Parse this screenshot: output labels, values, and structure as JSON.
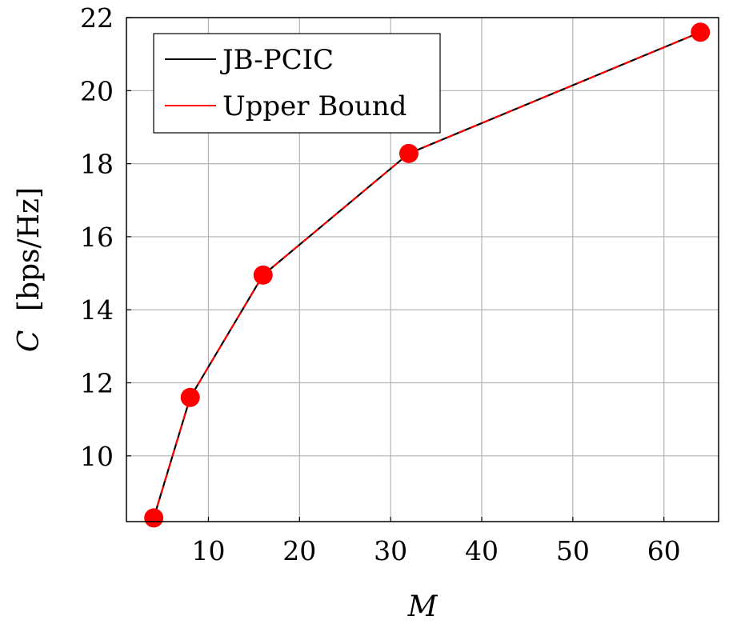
{
  "chart_data": {
    "type": "line",
    "xlabel": "M",
    "ylabel_symbol": "C",
    "ylabel_unit": "[bps/Hz]",
    "xlim": [
      1,
      66
    ],
    "ylim": [
      8.2,
      22
    ],
    "xticks": [
      10,
      20,
      30,
      40,
      50,
      60
    ],
    "yticks": [
      10,
      12,
      14,
      16,
      18,
      20,
      22
    ],
    "grid": true,
    "legend_position": "top-left",
    "x": [
      4,
      8,
      16,
      32,
      64
    ],
    "series": [
      {
        "name": "JB-PCIC",
        "color": "#000000",
        "style": "solid",
        "values": [
          8.3,
          11.6,
          14.95,
          18.28,
          21.6
        ]
      },
      {
        "name": "Upper Bound",
        "color": "#ff0000",
        "style": "dashed",
        "marker": "circle",
        "values": [
          8.3,
          11.6,
          14.95,
          18.28,
          21.6
        ]
      }
    ]
  }
}
